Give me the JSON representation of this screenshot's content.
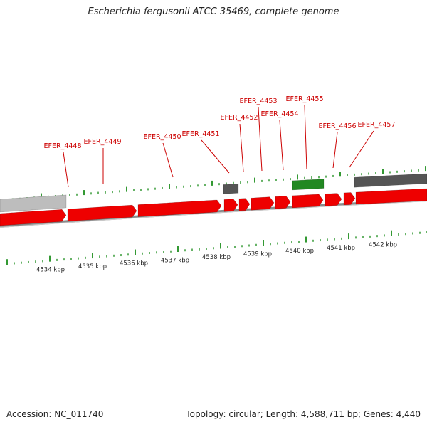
{
  "title": "Escherichia fergusonii ATCC 35469, complete genome",
  "footer": {
    "accession": "Accession: NC_011740",
    "stats": "Topology: circular; Length: 4,588,711 bp; Genes: 4,440"
  },
  "colors": {
    "forward_gene": "#ee0000",
    "other_feature": "#555555",
    "rna_gene": "#228822",
    "label": "#cc0000",
    "tick": "#339933",
    "backbone": "#8a8a8a"
  },
  "scale": {
    "unit": "kbp",
    "labels": [
      "4534 kbp",
      "4535 kbp",
      "4536 kbp",
      "4537 kbp",
      "4538 kbp",
      "4539 kbp",
      "4540 kbp",
      "4541 kbp",
      "4542 kbp"
    ]
  },
  "genes": [
    {
      "label": "EFER_4448"
    },
    {
      "label": "EFER_4449"
    },
    {
      "label": "EFER_4450"
    },
    {
      "label": "EFER_4451"
    },
    {
      "label": "EFER_4452"
    },
    {
      "label": "EFER_4453"
    },
    {
      "label": "EFER_4454"
    },
    {
      "label": "EFER_4455"
    },
    {
      "label": "EFER_4456"
    },
    {
      "label": "EFER_4457"
    }
  ]
}
